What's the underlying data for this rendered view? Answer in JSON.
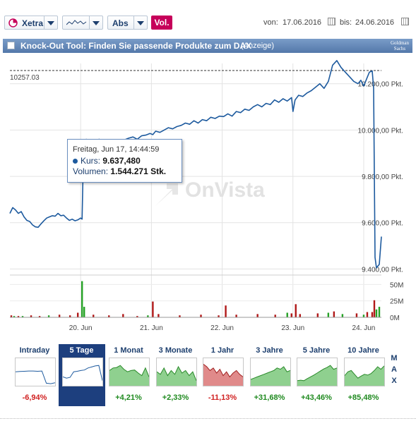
{
  "toolbar": {
    "exchange": "Xetra",
    "scale": "Abs",
    "vol": "Vol.",
    "from_label": "von:",
    "from_date": "17.06.2016",
    "to_label": "bis:",
    "to_date": "24.06.2016"
  },
  "banner": {
    "title": "Knock-Out Tool: Finden Sie passende Produkte zum DAX",
    "ad": "(Anzeige)",
    "logo_line1": "Goldman",
    "logo_line2": "Sachs"
  },
  "tooltip": {
    "date": "Freitag, Jun 17, 14:44:59",
    "kurs_label": "Kurs:",
    "kurs_value": "9.637,480",
    "vol_label": "Volumen:",
    "vol_value": "1.544.271 Stk."
  },
  "watermark": "OnVista",
  "chart_data": {
    "type": "line",
    "reference_line": {
      "value": 10257.03,
      "label": "10257.03",
      "style": "dashed"
    },
    "y_axis": {
      "range": [
        9380,
        10330
      ],
      "ticks": [
        9400,
        9600,
        9800,
        10000,
        10200
      ],
      "tick_labels": [
        "9.400,00 Pkt.",
        "9.600,00 Pkt.",
        "9.800,00 Pkt.",
        "10.000,00 Pkt.",
        "10.200,00 Pkt."
      ]
    },
    "x_axis": {
      "range": [
        0,
        5.25
      ],
      "ticks": [
        1,
        2,
        3,
        4,
        5
      ],
      "tick_labels": [
        "20. Jun",
        "21. Jun",
        "22. Jun",
        "23. Jun",
        "24. Jun"
      ]
    },
    "grid": true,
    "series": [
      {
        "points": [
          [
            0.0,
            9640
          ],
          [
            0.04,
            9665
          ],
          [
            0.08,
            9655
          ],
          [
            0.12,
            9640
          ],
          [
            0.16,
            9648
          ],
          [
            0.2,
            9625
          ],
          [
            0.24,
            9610
          ],
          [
            0.28,
            9605
          ],
          [
            0.32,
            9590
          ],
          [
            0.36,
            9582
          ],
          [
            0.4,
            9580
          ],
          [
            0.44,
            9595
          ],
          [
            0.48,
            9608
          ],
          [
            0.52,
            9620
          ],
          [
            0.56,
            9625
          ],
          [
            0.6,
            9630
          ],
          [
            0.64,
            9628
          ],
          [
            0.68,
            9640
          ],
          [
            0.72,
            9630
          ],
          [
            0.76,
            9632
          ],
          [
            0.8,
            9620
          ],
          [
            0.84,
            9610
          ],
          [
            0.88,
            9615
          ],
          [
            0.92,
            9608
          ],
          [
            0.96,
            9612
          ],
          [
            1.0,
            9620
          ],
          [
            1.02,
            9615
          ],
          [
            1.04,
            9905
          ],
          [
            1.08,
            9960
          ],
          [
            1.12,
            9945
          ],
          [
            1.16,
            9955
          ],
          [
            1.2,
            9940
          ],
          [
            1.26,
            9960
          ],
          [
            1.32,
            9950
          ],
          [
            1.38,
            9935
          ],
          [
            1.44,
            9945
          ],
          [
            1.5,
            9955
          ],
          [
            1.56,
            9950
          ],
          [
            1.62,
            9958
          ],
          [
            1.68,
            9965
          ],
          [
            1.74,
            9970
          ],
          [
            1.8,
            9960
          ],
          [
            1.86,
            9975
          ],
          [
            1.92,
            9978
          ],
          [
            1.98,
            9985
          ],
          [
            2.02,
            9980
          ],
          [
            2.06,
            9995
          ],
          [
            2.12,
            9990
          ],
          [
            2.18,
            10000
          ],
          [
            2.24,
            10010
          ],
          [
            2.3,
            10005
          ],
          [
            2.36,
            10015
          ],
          [
            2.42,
            10020
          ],
          [
            2.48,
            10030
          ],
          [
            2.54,
            10025
          ],
          [
            2.6,
            10040
          ],
          [
            2.66,
            10030
          ],
          [
            2.72,
            10045
          ],
          [
            2.78,
            10040
          ],
          [
            2.84,
            10055
          ],
          [
            2.9,
            10050
          ],
          [
            2.96,
            10060
          ],
          [
            3.02,
            10058
          ],
          [
            3.08,
            10070
          ],
          [
            3.14,
            10060
          ],
          [
            3.2,
            10080
          ],
          [
            3.26,
            10075
          ],
          [
            3.32,
            10090
          ],
          [
            3.38,
            10085
          ],
          [
            3.44,
            10100
          ],
          [
            3.5,
            10110
          ],
          [
            3.56,
            10100
          ],
          [
            3.62,
            10115
          ],
          [
            3.68,
            10110
          ],
          [
            3.74,
            10130
          ],
          [
            3.8,
            10120
          ],
          [
            3.86,
            10135
          ],
          [
            3.92,
            10125
          ],
          [
            3.98,
            10140
          ],
          [
            4.0,
            10080
          ],
          [
            4.03,
            10130
          ],
          [
            4.08,
            10150
          ],
          [
            4.14,
            10145
          ],
          [
            4.2,
            10160
          ],
          [
            4.26,
            10170
          ],
          [
            4.32,
            10185
          ],
          [
            4.38,
            10200
          ],
          [
            4.44,
            10180
          ],
          [
            4.5,
            10210
          ],
          [
            4.56,
            10280
          ],
          [
            4.62,
            10300
          ],
          [
            4.68,
            10270
          ],
          [
            4.74,
            10250
          ],
          [
            4.8,
            10230
          ],
          [
            4.86,
            10210
          ],
          [
            4.92,
            10200
          ],
          [
            4.96,
            10215
          ],
          [
            5.0,
            10190
          ],
          [
            5.04,
            10220
          ],
          [
            5.08,
            10250
          ],
          [
            5.12,
            10255
          ],
          [
            5.14,
            10180
          ],
          [
            5.16,
            9450
          ],
          [
            5.18,
            9405
          ],
          [
            5.22,
            9420
          ],
          [
            5.25,
            9540
          ]
        ]
      }
    ],
    "volume": {
      "y_range": [
        0,
        60
      ],
      "ticks": [
        0,
        25,
        50
      ],
      "tick_labels": [
        "0M",
        "25M",
        "50M"
      ],
      "bars": [
        [
          0.02,
          3,
          "red"
        ],
        [
          0.06,
          2,
          "green"
        ],
        [
          0.12,
          2,
          "red"
        ],
        [
          0.18,
          2,
          "green"
        ],
        [
          0.3,
          3,
          "red"
        ],
        [
          0.42,
          2,
          "red"
        ],
        [
          0.55,
          3,
          "green"
        ],
        [
          0.7,
          4,
          "red"
        ],
        [
          0.85,
          3,
          "red"
        ],
        [
          0.96,
          7,
          "red"
        ],
        [
          1.02,
          55,
          "green"
        ],
        [
          1.05,
          16,
          "green"
        ],
        [
          1.18,
          4,
          "red"
        ],
        [
          1.4,
          3,
          "red"
        ],
        [
          1.6,
          5,
          "red"
        ],
        [
          1.8,
          2,
          "red"
        ],
        [
          1.95,
          3,
          "green"
        ],
        [
          2.02,
          24,
          "red"
        ],
        [
          2.1,
          5,
          "red"
        ],
        [
          2.4,
          3,
          "red"
        ],
        [
          2.7,
          4,
          "red"
        ],
        [
          2.95,
          3,
          "red"
        ],
        [
          3.05,
          18,
          "red"
        ],
        [
          3.2,
          4,
          "red"
        ],
        [
          3.5,
          5,
          "red"
        ],
        [
          3.75,
          4,
          "red"
        ],
        [
          3.92,
          7,
          "green"
        ],
        [
          3.98,
          6,
          "red"
        ],
        [
          4.04,
          20,
          "red"
        ],
        [
          4.1,
          5,
          "red"
        ],
        [
          4.35,
          6,
          "red"
        ],
        [
          4.5,
          7,
          "green"
        ],
        [
          4.58,
          9,
          "red"
        ],
        [
          4.7,
          5,
          "green"
        ],
        [
          4.9,
          6,
          "red"
        ],
        [
          5.0,
          4,
          "green"
        ],
        [
          5.05,
          8,
          "red"
        ],
        [
          5.12,
          8,
          "red"
        ],
        [
          5.15,
          26,
          "red"
        ],
        [
          5.18,
          12,
          "green"
        ],
        [
          5.22,
          16,
          "green"
        ]
      ]
    }
  },
  "periods": [
    {
      "label": "Intraday",
      "change": "-6,94%",
      "trend": "neg",
      "active": false,
      "fill": "none",
      "spark": [
        0.55,
        0.56,
        0.57,
        0.58,
        0.58,
        0.57,
        0.58,
        0.1,
        0.08,
        0.12
      ]
    },
    {
      "label": "5 Tage",
      "change": "",
      "trend": "neg",
      "active": true,
      "fill": "none",
      "spark": [
        0.35,
        0.3,
        0.33,
        0.55,
        0.57,
        0.6,
        0.62,
        0.7,
        0.74,
        0.78,
        0.8,
        0.2
      ]
    },
    {
      "label": "1 Monat",
      "change": "+4,21%",
      "trend": "pos",
      "active": false,
      "fill": "green",
      "spark": [
        0.6,
        0.7,
        0.72,
        0.8,
        0.65,
        0.55,
        0.6,
        0.62,
        0.5,
        0.4,
        0.7,
        0.35
      ]
    },
    {
      "label": "3 Monate",
      "change": "+2,33%",
      "trend": "pos",
      "active": false,
      "fill": "green",
      "spark": [
        0.55,
        0.45,
        0.7,
        0.4,
        0.6,
        0.45,
        0.75,
        0.5,
        0.6,
        0.4,
        0.55,
        0.2
      ]
    },
    {
      "label": "1 Jahr",
      "change": "-11,13%",
      "trend": "neg",
      "active": false,
      "fill": "red",
      "spark": [
        0.85,
        0.75,
        0.6,
        0.7,
        0.5,
        0.65,
        0.4,
        0.55,
        0.35,
        0.5,
        0.6,
        0.45,
        0.35
      ]
    },
    {
      "label": "3 Jahre",
      "change": "+31,68%",
      "trend": "pos",
      "active": false,
      "fill": "green",
      "spark": [
        0.25,
        0.3,
        0.35,
        0.4,
        0.45,
        0.5,
        0.55,
        0.6,
        0.7,
        0.65,
        0.75,
        0.55,
        0.6
      ]
    },
    {
      "label": "5 Jahre",
      "change": "+43,46%",
      "trend": "pos",
      "active": false,
      "fill": "green",
      "spark": [
        0.2,
        0.22,
        0.2,
        0.28,
        0.35,
        0.42,
        0.5,
        0.58,
        0.66,
        0.72,
        0.8,
        0.65,
        0.7
      ]
    },
    {
      "label": "10 Jahre",
      "change": "+85,48%",
      "trend": "pos",
      "active": false,
      "fill": "green",
      "spark": [
        0.4,
        0.55,
        0.6,
        0.45,
        0.3,
        0.38,
        0.45,
        0.42,
        0.48,
        0.6,
        0.75,
        0.65,
        0.78
      ]
    }
  ],
  "max_label": [
    "M",
    "A",
    "X"
  ],
  "colors": {
    "line": "#1d5a9e",
    "up": "#26a226",
    "down": "#b01818",
    "accent": "#c6005a"
  }
}
